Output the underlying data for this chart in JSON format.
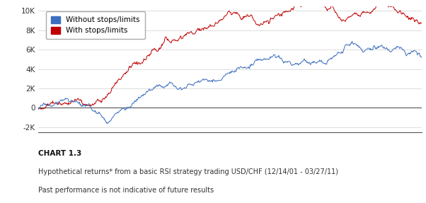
{
  "title_chart": "CHART 1.3",
  "subtitle1": "Hypothetical returns* from a basic RSI strategy trading USD/CHF (12/14/01 - 03/27/11)",
  "subtitle2": "Past performance is not indicative of future results",
  "legend_blue": "Without stops/limits",
  "legend_red": "With stops/limits",
  "color_blue": "#3C6EBF",
  "color_red": "#C00000",
  "ylim_min": -2500,
  "ylim_max": 10500,
  "yticks": [
    -2000,
    0,
    2000,
    4000,
    6000,
    8000,
    10000
  ],
  "ytick_labels": [
    "-2K",
    "0",
    "2K",
    "4K",
    "6K",
    "8K",
    "10K"
  ],
  "background_color": "#ffffff",
  "n_points": 800
}
